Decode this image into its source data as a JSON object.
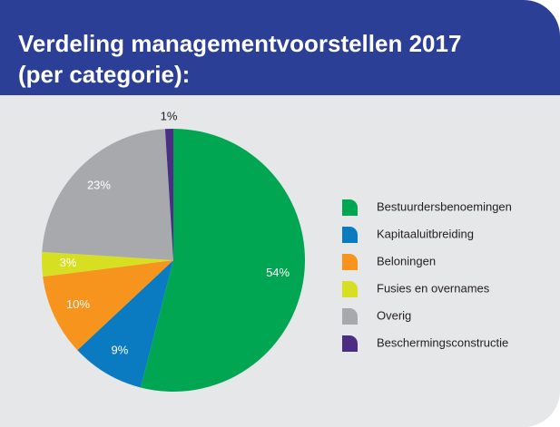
{
  "chart_data": {
    "type": "pie",
    "title_lines": [
      "Verdeling managementvoorstellen 2017",
      "(per categorie):"
    ],
    "categories": [
      "Bestuurdersbenoemingen",
      "Kapitaaluitbreiding",
      "Beloningen",
      "Fusies en overnames",
      "Overig",
      "Beschermingsconstructie"
    ],
    "values": [
      54,
      9,
      10,
      3,
      23,
      1
    ],
    "value_labels": [
      "54%",
      "9%",
      "10%",
      "3%",
      "23%",
      "1%"
    ],
    "colors": [
      "#00a651",
      "#0b7bc1",
      "#f7941d",
      "#d7df23",
      "#a7a9ac",
      "#4b2e83"
    ],
    "legend": "right"
  }
}
